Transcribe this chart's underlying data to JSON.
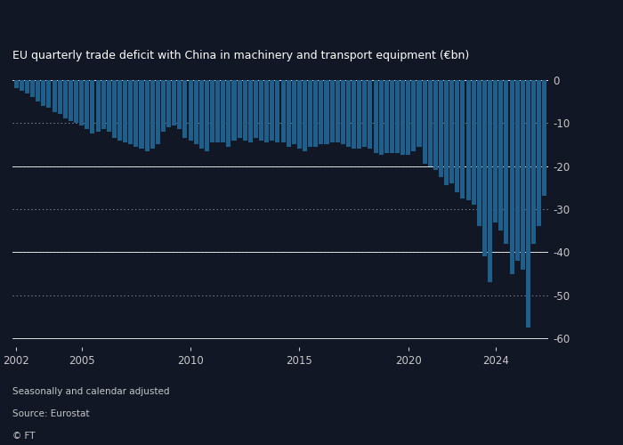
{
  "title": "EU quarterly trade deficit with China in machinery and transport equipment (€bn)",
  "footnote1": "Seasonally and calendar adjusted",
  "footnote2": "Source: Eurostat",
  "footnote3": "© FT",
  "bar_color": "#1f5f8b",
  "bg_color": "#121726",
  "text_color": "#c8c8c8",
  "ylim": [
    -62,
    2
  ],
  "yticks": [
    0,
    -10,
    -20,
    -30,
    -40,
    -50,
    -60
  ],
  "solid_lines": [
    0,
    -20,
    -40,
    -60
  ],
  "dotted_lines": [
    -10,
    -20,
    -30,
    -40,
    -50
  ],
  "xtick_years": [
    2002,
    2005,
    2010,
    2015,
    2020,
    2024
  ],
  "values": [
    -2.0,
    -2.5,
    -3.2,
    -4.0,
    -5.0,
    -6.0,
    -6.5,
    -7.5,
    -8.0,
    -9.0,
    -9.5,
    -10.0,
    -10.5,
    -11.5,
    -12.5,
    -12.0,
    -11.5,
    -12.0,
    -13.5,
    -14.0,
    -14.5,
    -15.0,
    -15.5,
    -16.0,
    -16.5,
    -16.0,
    -15.0,
    -12.0,
    -11.0,
    -10.5,
    -11.5,
    -13.5,
    -14.0,
    -15.0,
    -16.0,
    -16.5,
    -14.5,
    -14.5,
    -14.5,
    -15.5,
    -14.0,
    -13.5,
    -14.0,
    -14.5,
    -13.5,
    -14.0,
    -14.5,
    -14.0,
    -14.5,
    -14.5,
    -15.5,
    -15.0,
    -16.0,
    -16.5,
    -15.5,
    -15.5,
    -15.0,
    -15.0,
    -14.5,
    -14.5,
    -15.0,
    -15.5,
    -16.0,
    -16.0,
    -15.5,
    -16.0,
    -17.0,
    -17.5,
    -17.0,
    -17.0,
    -17.0,
    -17.5,
    -17.5,
    -16.5,
    -15.5,
    -19.5,
    -20.0,
    -21.0,
    -22.5,
    -24.5,
    -24.0,
    -26.0,
    -27.5,
    -28.0,
    -29.0,
    -34.0,
    -41.0,
    -47.0,
    -33.0,
    -35.0,
    -38.0,
    -45.0,
    -42.0,
    -44.0,
    -57.5,
    -38.0,
    -34.0,
    -27.0
  ]
}
